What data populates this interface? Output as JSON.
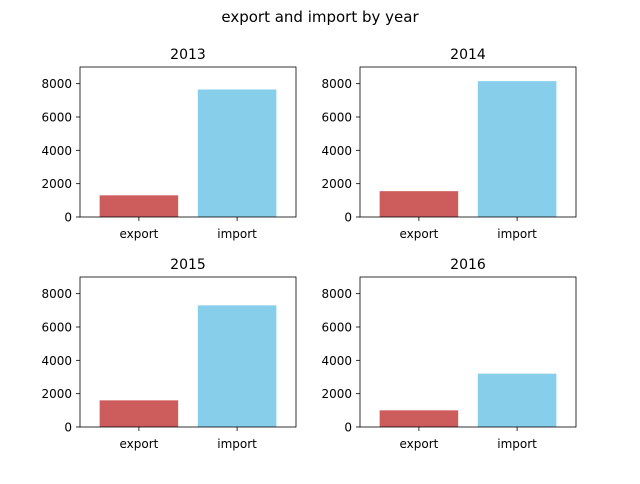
{
  "figure": {
    "title": "export and import by year"
  },
  "chart_data": [
    {
      "type": "bar",
      "title": "2013",
      "categories": [
        "export",
        "import"
      ],
      "values": [
        1300,
        7650
      ],
      "colors": [
        "#cd5c5c",
        "#87ceeb"
      ],
      "ylim": [
        0,
        9000
      ],
      "yticks": [
        0,
        2000,
        4000,
        6000,
        8000
      ],
      "xlabel": "",
      "ylabel": ""
    },
    {
      "type": "bar",
      "title": "2014",
      "categories": [
        "export",
        "import"
      ],
      "values": [
        1550,
        8150
      ],
      "colors": [
        "#cd5c5c",
        "#87ceeb"
      ],
      "ylim": [
        0,
        9000
      ],
      "yticks": [
        0,
        2000,
        4000,
        6000,
        8000
      ],
      "xlabel": "",
      "ylabel": ""
    },
    {
      "type": "bar",
      "title": "2015",
      "categories": [
        "export",
        "import"
      ],
      "values": [
        1600,
        7300
      ],
      "colors": [
        "#cd5c5c",
        "#87ceeb"
      ],
      "ylim": [
        0,
        9000
      ],
      "yticks": [
        0,
        2000,
        4000,
        6000,
        8000
      ],
      "xlabel": "",
      "ylabel": ""
    },
    {
      "type": "bar",
      "title": "2016",
      "categories": [
        "export",
        "import"
      ],
      "values": [
        1000,
        3200
      ],
      "colors": [
        "#cd5c5c",
        "#87ceeb"
      ],
      "ylim": [
        0,
        9000
      ],
      "yticks": [
        0,
        2000,
        4000,
        6000,
        8000
      ],
      "xlabel": "",
      "ylabel": ""
    }
  ]
}
